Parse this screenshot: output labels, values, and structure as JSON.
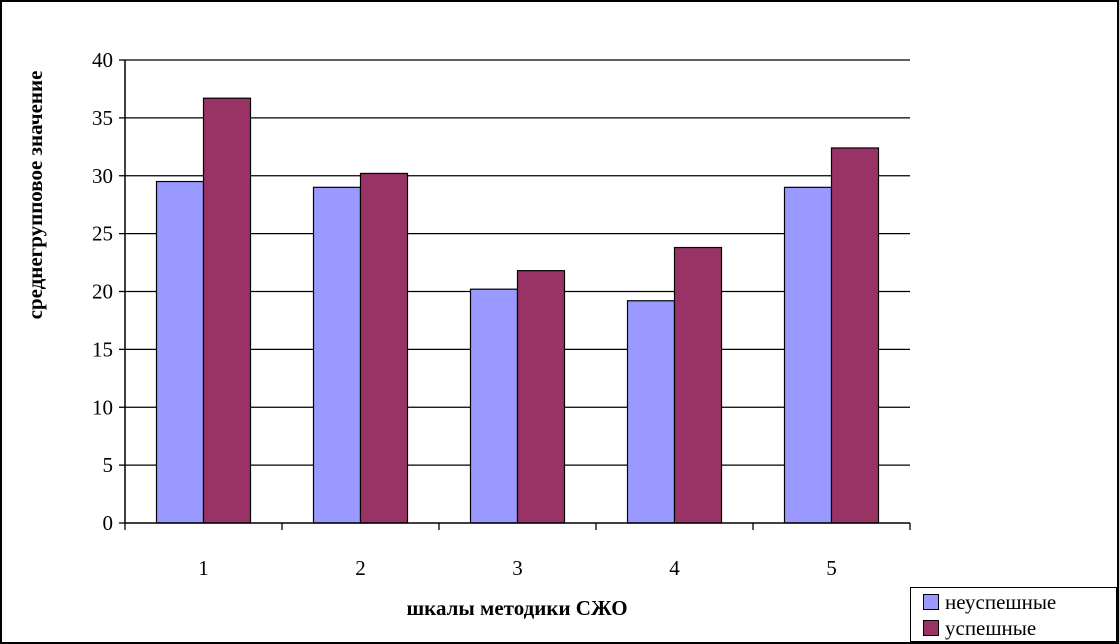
{
  "chart_data": {
    "type": "bar",
    "categories": [
      "1",
      "2",
      "3",
      "4",
      "5"
    ],
    "series": [
      {
        "name": "неуспешные",
        "values": [
          29.5,
          29.0,
          20.2,
          19.2,
          29.0
        ],
        "color": "#9999ff"
      },
      {
        "name": "успешные",
        "values": [
          36.7,
          30.2,
          21.8,
          23.8,
          32.4
        ],
        "color": "#993366"
      }
    ],
    "title": "",
    "xlabel": "шкалы методики СЖО",
    "ylabel": "среднегрупповое значение",
    "ylim": [
      0,
      40
    ],
    "yticks": [
      0,
      5,
      10,
      15,
      20,
      25,
      30,
      35,
      40
    ],
    "grid": true,
    "legend_position": "bottom-right"
  }
}
